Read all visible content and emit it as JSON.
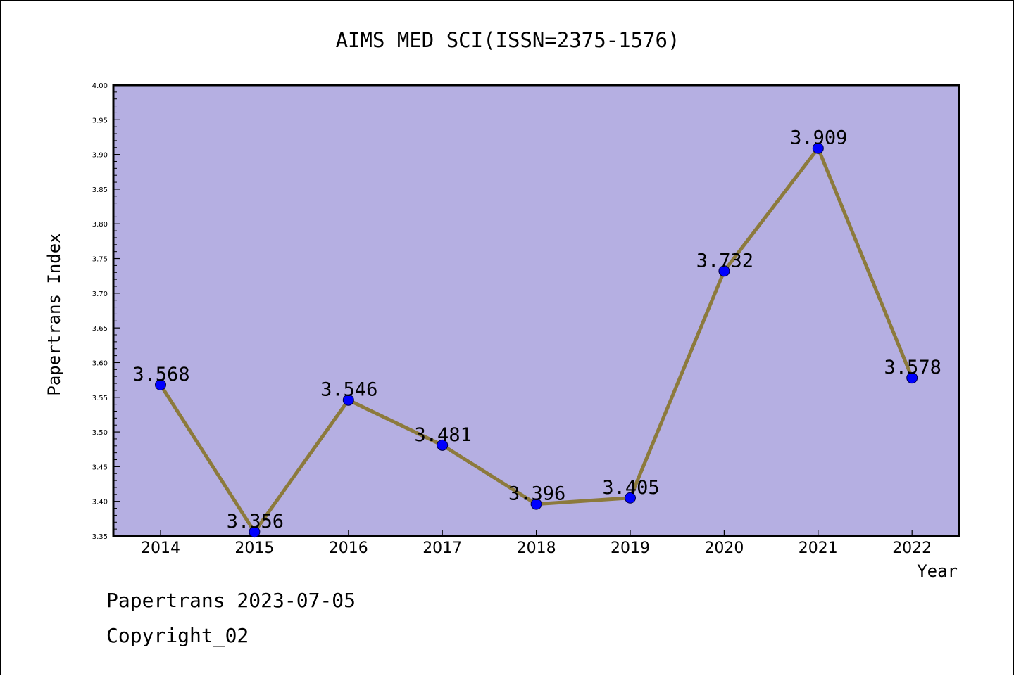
{
  "chart_data": {
    "type": "line",
    "title": "AIMS MED SCI(ISSN=2375-1576)",
    "xlabel": "Year",
    "ylabel": "Papertrans Index",
    "categories": [
      "2014",
      "2015",
      "2016",
      "2017",
      "2018",
      "2019",
      "2020",
      "2021",
      "2022"
    ],
    "values": [
      3.568,
      3.356,
      3.546,
      3.481,
      3.396,
      3.405,
      3.732,
      3.909,
      3.578
    ],
    "data_labels": [
      "3.568",
      "3.356",
      "3.546",
      "3.481",
      "3.396",
      "3.405",
      "3.732",
      "3.909",
      "3.578"
    ],
    "ylim": [
      3.35,
      4.0
    ],
    "yticks": [
      "3.35",
      "3.40",
      "3.45",
      "3.50",
      "3.55",
      "3.60",
      "3.65",
      "3.70",
      "3.75",
      "3.80",
      "3.85",
      "3.90",
      "3.95",
      "4.00"
    ],
    "grid": false,
    "legend": "none",
    "colors": {
      "plot_background": "#b5afe2",
      "line": "#8c7a3c",
      "marker": "#0000ff"
    }
  },
  "footer": {
    "line1": "Papertrans 2023-07-05",
    "line2": "Copyright_02"
  }
}
